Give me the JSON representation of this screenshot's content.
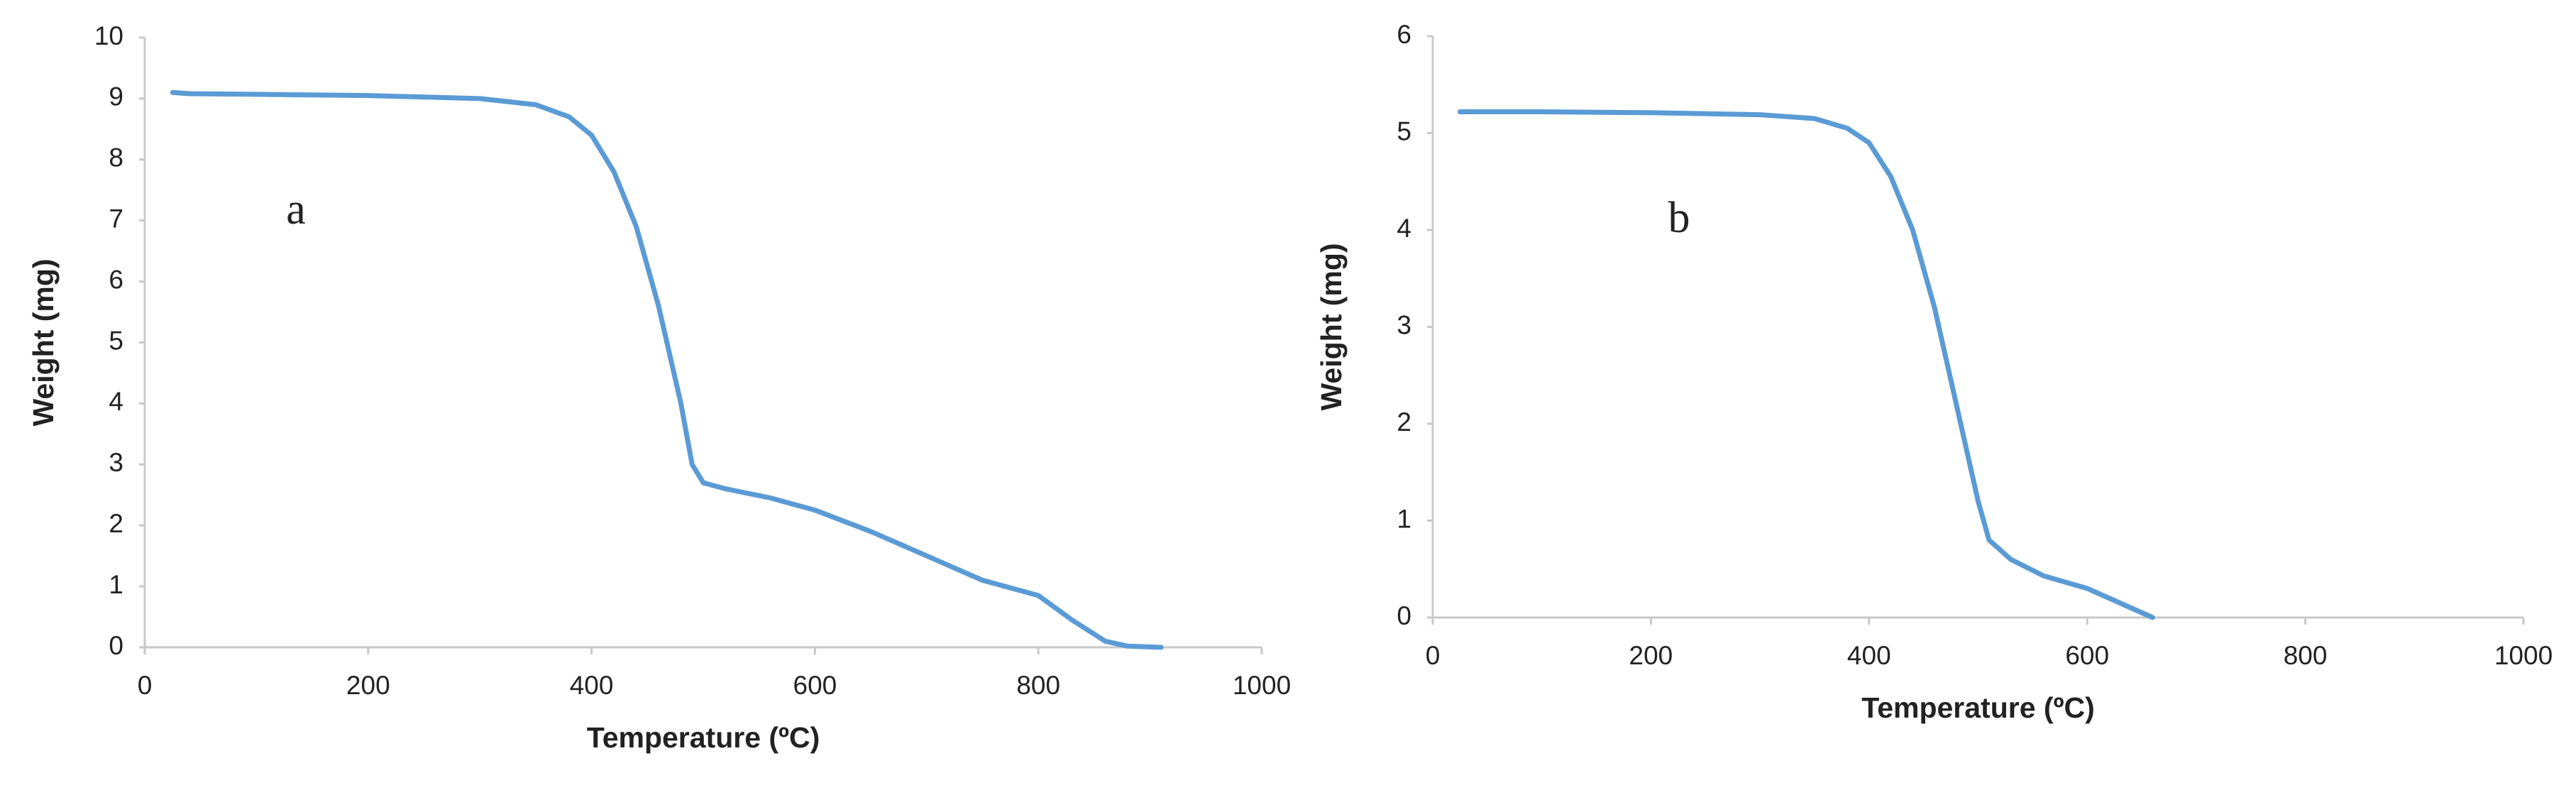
{
  "chart_data": [
    {
      "type": "line",
      "annotation": "a",
      "xlabel": "Temperature (ºC)",
      "ylabel": "Weight (mg)",
      "xlim": [
        0,
        1000
      ],
      "xticks": [
        0,
        200,
        400,
        600,
        800,
        1000
      ],
      "ylim": [
        0,
        10
      ],
      "yticks": [
        0,
        1,
        2,
        3,
        4,
        5,
        6,
        7,
        8,
        9,
        10
      ],
      "color": "#5b9bd5",
      "x": [
        25,
        40,
        100,
        200,
        300,
        350,
        380,
        400,
        420,
        440,
        460,
        480,
        490,
        500,
        520,
        560,
        600,
        650,
        700,
        750,
        800,
        830,
        860,
        880,
        910
      ],
      "values": [
        9.1,
        9.08,
        9.07,
        9.05,
        9.0,
        8.9,
        8.7,
        8.4,
        7.8,
        6.9,
        5.6,
        4.0,
        3.0,
        2.7,
        2.6,
        2.45,
        2.25,
        1.9,
        1.5,
        1.1,
        0.85,
        0.45,
        0.1,
        0.02,
        0.0
      ]
    },
    {
      "type": "line",
      "annotation": "b",
      "xlabel": "Temperature (ºC)",
      "ylabel": "Weight (mg)",
      "xlim": [
        0,
        1000
      ],
      "xticks": [
        0,
        200,
        400,
        600,
        800,
        1000
      ],
      "ylim": [
        0,
        6
      ],
      "yticks": [
        0,
        1,
        2,
        3,
        4,
        5,
        6
      ],
      "color": "#5b9bd5",
      "x": [
        25,
        100,
        200,
        300,
        350,
        380,
        400,
        420,
        440,
        460,
        480,
        500,
        510,
        530,
        560,
        600,
        630,
        660
      ],
      "values": [
        5.22,
        5.22,
        5.21,
        5.19,
        5.15,
        5.05,
        4.9,
        4.55,
        4.0,
        3.2,
        2.2,
        1.2,
        0.8,
        0.6,
        0.43,
        0.3,
        0.15,
        0.0
      ]
    }
  ]
}
